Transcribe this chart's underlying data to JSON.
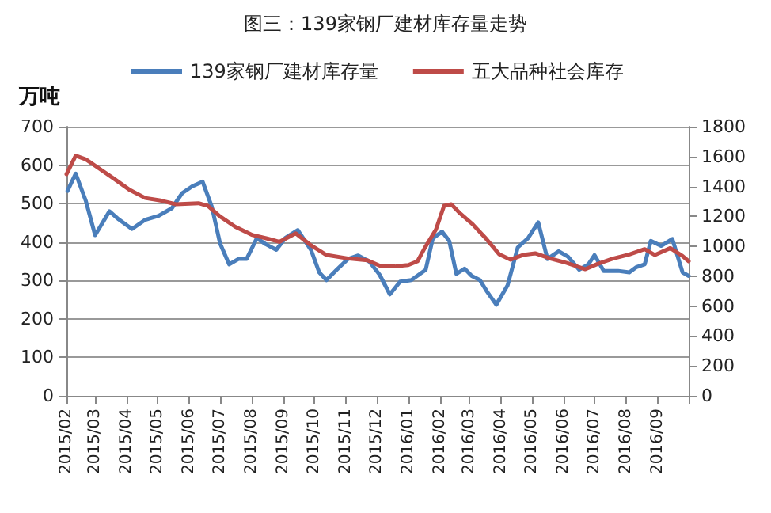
{
  "chart_data": {
    "type": "line",
    "title": "图三：139家钢厂建材库存量走势",
    "ylabel": "万吨",
    "legend": "top",
    "grid": "y",
    "marker": "none",
    "line_style": "solid",
    "xlim": [
      "2015-02-01",
      "2016-10-01"
    ],
    "xticks": [
      {
        "value": "2015-02-01",
        "label": "2015/02"
      },
      {
        "value": "2015-03-01",
        "label": "2015/03"
      },
      {
        "value": "2015-04-01",
        "label": "2015/04"
      },
      {
        "value": "2015-05-01",
        "label": "2015/05"
      },
      {
        "value": "2015-06-01",
        "label": "2015/06"
      },
      {
        "value": "2015-07-01",
        "label": "2015/07"
      },
      {
        "value": "2015-08-01",
        "label": "2015/08"
      },
      {
        "value": "2015-09-01",
        "label": "2015/09"
      },
      {
        "value": "2015-10-01",
        "label": "2015/10"
      },
      {
        "value": "2015-11-01",
        "label": "2015/11"
      },
      {
        "value": "2015-12-01",
        "label": "2015/12"
      },
      {
        "value": "2016-01-01",
        "label": "2016/01"
      },
      {
        "value": "2016-02-01",
        "label": "2016/02"
      },
      {
        "value": "2016-03-01",
        "label": "2016/03"
      },
      {
        "value": "2016-04-01",
        "label": "2016/04"
      },
      {
        "value": "2016-05-01",
        "label": "2016/05"
      },
      {
        "value": "2016-06-01",
        "label": "2016/06"
      },
      {
        "value": "2016-07-01",
        "label": "2016/07"
      },
      {
        "value": "2016-08-01",
        "label": "2016/08"
      },
      {
        "value": "2016-09-01",
        "label": "2016/09"
      },
      {
        "value": "2016-10-01",
        "label": null
      }
    ],
    "ylim": [
      0,
      700
    ],
    "yticks": [
      0,
      100,
      200,
      300,
      400,
      500,
      600,
      700
    ],
    "y2lim": [
      0,
      1800
    ],
    "y2ticks": [
      0,
      200,
      400,
      600,
      800,
      1000,
      1200,
      1400,
      1600,
      1800
    ],
    "series": [
      {
        "name": "139家钢厂建材库存量",
        "color": "#4a7ebb",
        "x": [
          "2015-02-02",
          "2015-02-10",
          "2015-02-20",
          "2015-03-01",
          "2015-03-15",
          "2015-03-24",
          "2015-04-06",
          "2015-04-19",
          "2015-05-02",
          "2015-05-15",
          "2015-05-25",
          "2015-06-04",
          "2015-06-14",
          "2015-06-23",
          "2015-07-01",
          "2015-07-10",
          "2015-07-19",
          "2015-07-27",
          "2015-08-06",
          "2015-08-15",
          "2015-08-25",
          "2015-09-03",
          "2015-09-15",
          "2015-09-28",
          "2015-10-06",
          "2015-10-13",
          "2015-10-23",
          "2015-11-03",
          "2015-11-13",
          "2015-11-24",
          "2015-12-04",
          "2015-12-14",
          "2015-12-24",
          "2016-01-04",
          "2016-01-18",
          "2016-01-25",
          "2016-02-03",
          "2016-02-10",
          "2016-02-17",
          "2016-02-25",
          "2016-03-03",
          "2016-03-11",
          "2016-03-18",
          "2016-03-27",
          "2016-04-07",
          "2016-04-17",
          "2016-04-27",
          "2016-05-07",
          "2016-05-16",
          "2016-05-27",
          "2016-06-05",
          "2016-06-16",
          "2016-06-25",
          "2016-07-01",
          "2016-07-10",
          "2016-07-24",
          "2016-08-04",
          "2016-08-11",
          "2016-08-19",
          "2016-08-25",
          "2016-09-04",
          "2016-09-15",
          "2016-09-25",
          "2016-10-01"
        ],
        "values": [
          533,
          578,
          506,
          418,
          480,
          459,
          434,
          458,
          468,
          488,
          527,
          545,
          557,
          492,
          397,
          342,
          356,
          356,
          410,
          394,
          380,
          411,
          431,
          379,
          321,
          301,
          328,
          356,
          365,
          349,
          315,
          264,
          297,
          301,
          328,
          410,
          427,
          403,
          317,
          331,
          312,
          301,
          271,
          237,
          287,
          386,
          410,
          451,
          356,
          376,
          362,
          328,
          342,
          366,
          325,
          325,
          321,
          335,
          342,
          403,
          390,
          408,
          321,
          312
        ]
      },
      {
        "name": "五大品种社会库存",
        "color": "#be4b48",
        "axis": "y2",
        "x": [
          "2015-02-01",
          "2015-02-10",
          "2015-02-20",
          "2015-03-04",
          "2015-03-19",
          "2015-04-04",
          "2015-04-19",
          "2015-05-04",
          "2015-05-19",
          "2015-06-10",
          "2015-06-19",
          "2015-07-01",
          "2015-07-16",
          "2015-08-01",
          "2015-08-16",
          "2015-08-28",
          "2015-09-13",
          "2015-09-28",
          "2015-10-13",
          "2015-11-04",
          "2015-11-22",
          "2015-12-04",
          "2015-12-19",
          "2016-01-01",
          "2016-01-10",
          "2016-01-17",
          "2016-01-28",
          "2016-02-05",
          "2016-02-12",
          "2016-02-21",
          "2016-03-04",
          "2016-03-16",
          "2016-03-30",
          "2016-04-10",
          "2016-04-22",
          "2016-05-04",
          "2016-05-19",
          "2016-06-04",
          "2016-06-22",
          "2016-07-04",
          "2016-07-19",
          "2016-08-04",
          "2016-08-19",
          "2016-08-29",
          "2016-09-13",
          "2016-09-25",
          "2016-10-01"
        ],
        "values": [
          1482,
          1606,
          1581,
          1525,
          1454,
          1376,
          1323,
          1306,
          1281,
          1288,
          1271,
          1200,
          1130,
          1077,
          1052,
          1030,
          1087,
          1006,
          942,
          918,
          907,
          871,
          865,
          875,
          900,
          988,
          1112,
          1271,
          1281,
          1218,
          1147,
          1059,
          946,
          911,
          942,
          953,
          918,
          889,
          847,
          882,
          918,
          946,
          981,
          942,
          988,
          935,
          900
        ]
      }
    ]
  }
}
